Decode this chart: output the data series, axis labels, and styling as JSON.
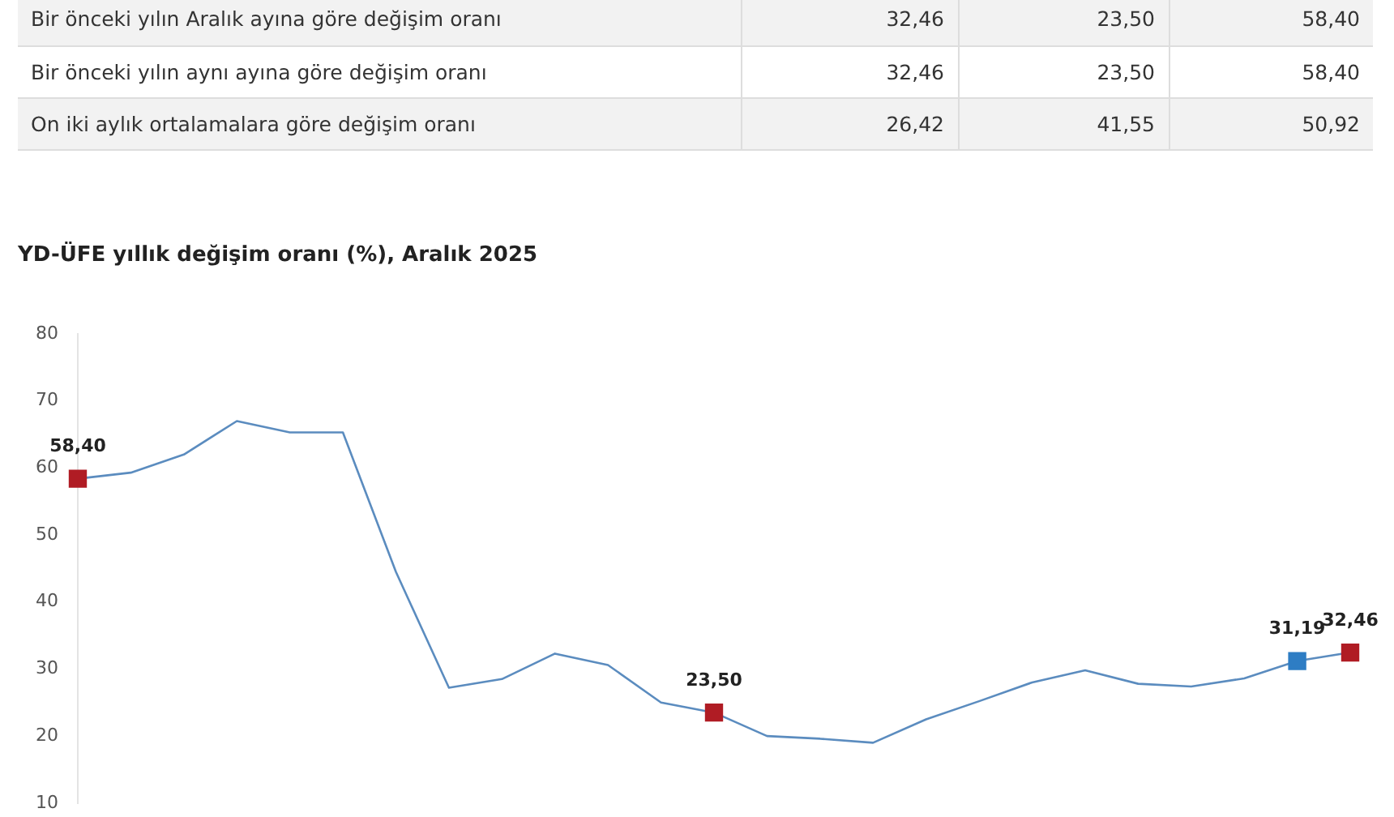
{
  "chart_data": {
    "type": "line",
    "title": "YD-ÜFE yıllık değişim oranı (%), Aralık 2025",
    "annotations": [
      "Bir önceki yılın Aralık ayına göre değişim oranı",
      "32,46",
      "23,50",
      "58,40",
      "Bir önceki yılın aynı ayına göre değişim oranı",
      "32,46",
      "23,50",
      "58,40",
      "On iki aylık ortalamalara göre değişim oranı",
      "26,42",
      "41,55",
      "50,92"
    ],
    "categories": [
      null,
      null,
      null,
      null,
      null,
      null,
      null,
      null,
      null,
      null,
      null,
      null,
      null,
      null,
      null,
      null,
      null,
      null,
      null,
      null,
      null,
      null,
      null,
      null,
      null
    ],
    "series": [
      {
        "color": "#5b8cbf",
        "values": [
          58.4,
          59.3,
          62,
          67,
          65.3,
          65.3,
          44.5,
          27.2,
          28.5,
          32.3,
          30.6,
          25,
          23.5,
          20,
          19.6,
          19,
          22.5,
          25.2,
          28,
          29.8,
          27.8,
          27.4,
          28.6,
          31.19,
          32.46
        ],
        "colors": [
          "#b01c24",
          null,
          null,
          null,
          null,
          null,
          null,
          null,
          null,
          null,
          null,
          null,
          "#b01c24",
          null,
          null,
          null,
          null,
          null,
          null,
          null,
          null,
          null,
          null,
          "#2e7dc4",
          "#b01c24"
        ],
        "value_labels": [
          "58,40",
          null,
          null,
          null,
          null,
          null,
          null,
          null,
          null,
          null,
          null,
          null,
          "23,50",
          null,
          null,
          null,
          null,
          null,
          null,
          null,
          null,
          null,
          null,
          "31,19",
          "32,46"
        ]
      }
    ],
    "ylim": [
      10,
      80
    ],
    "yticks": [
      10,
      20,
      30,
      40,
      50,
      60,
      70,
      80
    ],
    "grid": false,
    "legend": false,
    "line_style": "solid"
  }
}
